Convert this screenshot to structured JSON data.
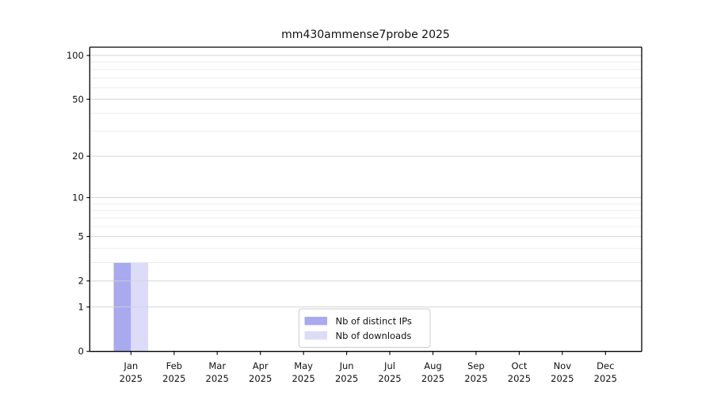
{
  "figure": {
    "background": "#ffffff"
  },
  "chart_data": {
    "type": "bar",
    "title": "mm430ammense7probe 2025",
    "year": "2025",
    "categories": [
      "Jan",
      "Feb",
      "Mar",
      "Apr",
      "May",
      "Jun",
      "Jul",
      "Aug",
      "Sep",
      "Oct",
      "Nov",
      "Dec"
    ],
    "series": [
      {
        "name": "Nb of distinct IPs",
        "color": "#a9a9f0",
        "values": [
          3,
          0,
          0,
          0,
          0,
          0,
          0,
          0,
          0,
          0,
          0,
          0
        ]
      },
      {
        "name": "Nb of downloads",
        "color": "#dcdcf8",
        "values": [
          3,
          0,
          0,
          0,
          0,
          0,
          0,
          0,
          0,
          0,
          0,
          0
        ]
      }
    ],
    "xlabel": "",
    "ylabel": "",
    "yscale": "log(1+v)",
    "ylim": [
      0,
      114
    ],
    "yticks": [
      0,
      1,
      2,
      5,
      10,
      20,
      50,
      100
    ],
    "minor_yticks": [
      3,
      4,
      6,
      7,
      8,
      9,
      30,
      40,
      60,
      70,
      80,
      90
    ],
    "grid": true,
    "legend": {
      "position": "lower center",
      "entries": [
        "Nb of distinct IPs",
        "Nb of downloads"
      ]
    }
  },
  "colors": {
    "axis": "#000000",
    "text": "#111111",
    "grid_major": "#d0d0d0",
    "grid_minor": "#e9e9e9",
    "legend_border": "#cccccc",
    "legend_fill": "#ffffff"
  }
}
